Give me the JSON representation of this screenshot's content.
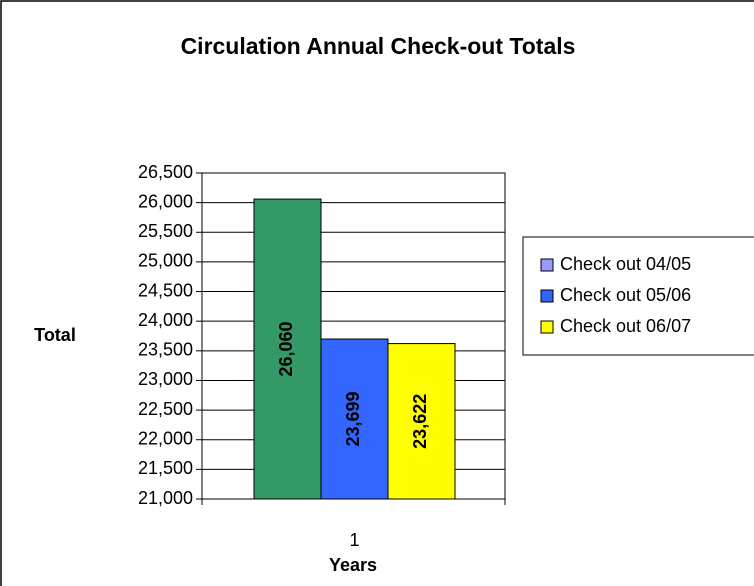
{
  "chart_data": {
    "type": "bar",
    "title": "Circulation Annual Check-out Totals",
    "x_label": "Years",
    "y_label": "Total",
    "categories": [
      "1"
    ],
    "series": [
      {
        "name": "Check out 04/05",
        "color": "#339966",
        "legend_color": "#9999ff",
        "values": [
          26060
        ],
        "value_labels": [
          "26,060"
        ]
      },
      {
        "name": "Check out 05/06",
        "color": "#3366ff",
        "legend_color": "#3366ff",
        "values": [
          23699
        ],
        "value_labels": [
          "23,699"
        ]
      },
      {
        "name": "Check out 06/07",
        "color": "#ffff00",
        "legend_color": "#ffff00",
        "values": [
          23622
        ],
        "value_labels": [
          "23,622"
        ]
      }
    ],
    "ylim": [
      21000,
      26500
    ],
    "yticks": [
      {
        "value": 21000,
        "label": "21,000"
      },
      {
        "value": 21500,
        "label": "21,500"
      },
      {
        "value": 22000,
        "label": "22,000"
      },
      {
        "value": 22500,
        "label": "22,500"
      },
      {
        "value": 23000,
        "label": "23,000"
      },
      {
        "value": 23500,
        "label": "23,500"
      },
      {
        "value": 24000,
        "label": "24,000"
      },
      {
        "value": 24500,
        "label": "24,500"
      },
      {
        "value": 25000,
        "label": "25,000"
      },
      {
        "value": 25500,
        "label": "25,500"
      },
      {
        "value": 26000,
        "label": "26,000"
      },
      {
        "value": 26500,
        "label": "26,500"
      }
    ],
    "grid": true
  }
}
